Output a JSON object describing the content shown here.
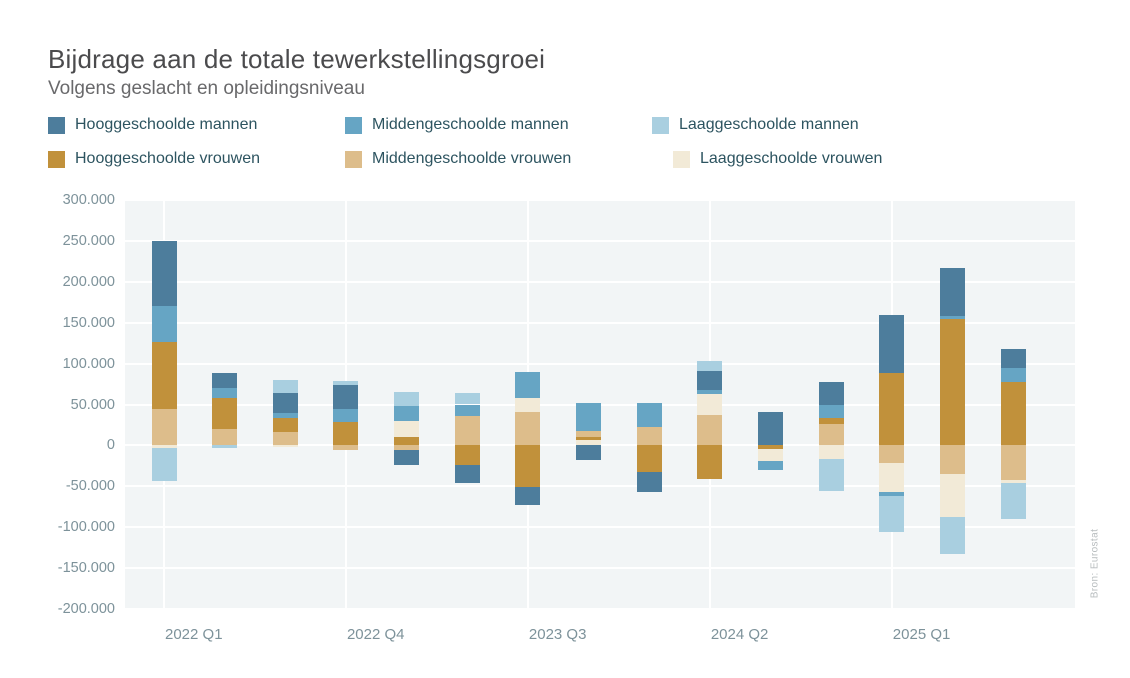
{
  "title": "Bijdrage aan de totale tewerkstellingsgroei",
  "subtitle": "Volgens geslacht en opleidingsniveau",
  "source_note": "Bron: Eurostat",
  "series": {
    "HM": {
      "label": "Hooggeschoolde mannen",
      "color": "#4d7d9c"
    },
    "MM": {
      "label": "Middengeschoolde mannen",
      "color": "#66a5c4"
    },
    "LM": {
      "label": "Laaggeschoolde mannen",
      "color": "#a9cfe0"
    },
    "HV": {
      "label": "Hooggeschoolde vrouwen",
      "color": "#c1913b"
    },
    "MV": {
      "label": "Middengeschoolde vrouwen",
      "color": "#ddbd8b"
    },
    "LV": {
      "label": "Laaggeschoolde vrouwen",
      "color": "#f2ead7"
    }
  },
  "legend": {
    "rows": [
      {
        "y": 116,
        "items": [
          {
            "key": "HM",
            "x": 48
          },
          {
            "key": "MM",
            "x": 345
          },
          {
            "key": "LM",
            "x": 652
          }
        ]
      },
      {
        "y": 150,
        "items": [
          {
            "key": "HV",
            "x": 48
          },
          {
            "key": "MV",
            "x": 345
          },
          {
            "key": "LV",
            "x": 673
          }
        ]
      }
    ]
  },
  "chart_data": {
    "type": "bar",
    "stacked": true,
    "grid": true,
    "ylim": [
      -200000,
      300000
    ],
    "y_tick_step": 50000,
    "y_tick_labels": [
      "300.000",
      "250.000",
      "200.000",
      "150.000",
      "100.000",
      "50.000",
      "0",
      "-50.000",
      "-100.000",
      "-150.000",
      "-200.000"
    ],
    "x_ticks": [
      {
        "index": 0,
        "label": "2022 Q1"
      },
      {
        "index": 3,
        "label": "2022 Q4"
      },
      {
        "index": 6,
        "label": "2023 Q3"
      },
      {
        "index": 9,
        "label": "2024 Q2"
      },
      {
        "index": 12,
        "label": "2025 Q1"
      }
    ],
    "categories": [
      "2022 Q1",
      "2022 Q2",
      "2022 Q3",
      "2022 Q4",
      "2023 Q1",
      "2023 Q2",
      "2023 Q3",
      "2023 Q4",
      "2024 Q1",
      "2024 Q2",
      "2024 Q3",
      "2024 Q4",
      "2025 Q1",
      "2025 Q2",
      "2025 Q3"
    ],
    "bars": [
      {
        "category": "2022 Q1",
        "stack_up": [
          [
            "MV",
            44000
          ],
          [
            "HV",
            83000
          ],
          [
            "MM",
            43000
          ],
          [
            "HM",
            80000
          ]
        ],
        "stack_down": [
          [
            "LV",
            -3000
          ],
          [
            "LM",
            -41000
          ]
        ]
      },
      {
        "category": "2022 Q2",
        "stack_up": [
          [
            "MV",
            20000
          ],
          [
            "HV",
            37500
          ],
          [
            "MM",
            13000
          ],
          [
            "HM",
            18500
          ]
        ],
        "stack_down": [
          [
            "LM",
            -3000
          ]
        ]
      },
      {
        "category": "2022 Q3",
        "stack_up": [
          [
            "MV",
            16500
          ],
          [
            "HV",
            17000
          ],
          [
            "MM",
            5500
          ],
          [
            "HM",
            24500
          ],
          [
            "LM",
            16500
          ]
        ],
        "stack_down": [
          [
            "LV",
            -2000
          ]
        ]
      },
      {
        "category": "2022 Q4",
        "stack_up": [
          [
            "HV",
            29000
          ],
          [
            "MM",
            15000
          ],
          [
            "HM",
            30000
          ],
          [
            "LM",
            5000
          ]
        ],
        "stack_down": [
          [
            "MV",
            -5500
          ]
        ]
      },
      {
        "category": "2023 Q1",
        "stack_up": [
          [
            "HV",
            10000
          ],
          [
            "LV",
            20000
          ],
          [
            "MM",
            18500
          ],
          [
            "LM",
            16500
          ]
        ],
        "stack_down": [
          [
            "MV",
            -6000
          ],
          [
            "HM",
            -17500
          ]
        ]
      },
      {
        "category": "2023 Q2",
        "stack_up": [
          [
            "MV",
            36000
          ],
          [
            "MM",
            14000
          ],
          [
            "LM",
            14500
          ]
        ],
        "stack_down": [
          [
            "HV",
            -24000
          ],
          [
            "HM",
            -22500
          ]
        ]
      },
      {
        "category": "2023 Q3",
        "stack_up": [
          [
            "MV",
            41000
          ],
          [
            "LV",
            16500
          ],
          [
            "MM",
            32500
          ]
        ],
        "stack_down": [
          [
            "HV",
            -50500
          ],
          [
            "HM",
            -22500
          ]
        ]
      },
      {
        "category": "2023 Q4",
        "stack_up": [
          [
            "LV",
            6500
          ],
          [
            "HV",
            3500
          ],
          [
            "MV",
            7000
          ],
          [
            "MM",
            34500
          ]
        ],
        "stack_down": [
          [
            "HM",
            -18000
          ]
        ]
      },
      {
        "category": "2024 Q1",
        "stack_up": [
          [
            "MV",
            23000
          ],
          [
            "MM",
            28500
          ]
        ],
        "stack_down": [
          [
            "HV",
            -33000
          ],
          [
            "HM",
            -24000
          ]
        ]
      },
      {
        "category": "2024 Q2",
        "stack_up": [
          [
            "MV",
            37000
          ],
          [
            "LV",
            25500
          ],
          [
            "MM",
            5500
          ],
          [
            "HM",
            22500
          ],
          [
            "LM",
            12500
          ]
        ],
        "stack_down": [
          [
            "HV",
            -41000
          ]
        ]
      },
      {
        "category": "2024 Q3",
        "stack_up": [
          [
            "HM",
            41000
          ]
        ],
        "stack_down": [
          [
            "HV",
            -5000
          ],
          [
            "LV",
            -14000
          ],
          [
            "MM",
            -10500
          ]
        ]
      },
      {
        "category": "2024 Q4",
        "stack_up": [
          [
            "MV",
            26000
          ],
          [
            "HV",
            7000
          ],
          [
            "MM",
            16500
          ],
          [
            "HM",
            27500
          ]
        ],
        "stack_down": [
          [
            "LV",
            -17000
          ],
          [
            "LM",
            -39000
          ]
        ]
      },
      {
        "category": "2025 Q1",
        "stack_up": [
          [
            "HV",
            88000
          ],
          [
            "HM",
            71500
          ]
        ],
        "stack_down": [
          [
            "MV",
            -21000
          ],
          [
            "LV",
            -36000
          ],
          [
            "MM",
            -5000
          ],
          [
            "LM",
            -44000
          ]
        ]
      },
      {
        "category": "2025 Q2",
        "stack_up": [
          [
            "HV",
            154500
          ],
          [
            "MM",
            4000
          ],
          [
            "HM",
            58000
          ]
        ],
        "stack_down": [
          [
            "MV",
            -34500
          ],
          [
            "LV",
            -53000
          ],
          [
            "LM",
            -45000
          ]
        ]
      },
      {
        "category": "2025 Q3",
        "stack_up": [
          [
            "HV",
            78000
          ],
          [
            "MM",
            16500
          ],
          [
            "HM",
            23500
          ]
        ],
        "stack_down": [
          [
            "MV",
            -42500
          ],
          [
            "LV",
            -3500
          ],
          [
            "LM",
            -43500
          ]
        ]
      }
    ]
  }
}
